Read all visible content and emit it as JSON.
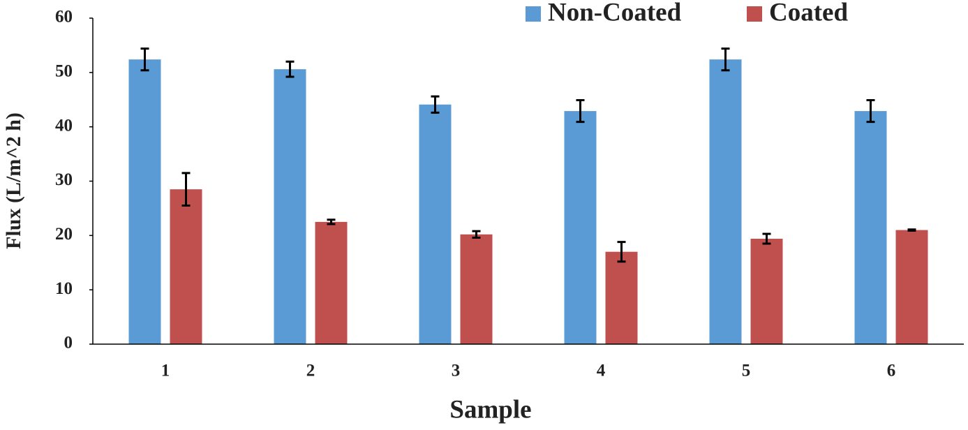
{
  "chart_data": {
    "type": "bar",
    "x_label": "Sample",
    "y_label": "Flux (L/m^2 h)",
    "categories": [
      "1",
      "2",
      "3",
      "4",
      "5",
      "6"
    ],
    "series": [
      {
        "name": "Non-Coated",
        "color": "#5b9bd5",
        "values": [
          52.4,
          50.6,
          44.1,
          42.9,
          52.4,
          42.9
        ],
        "errors": [
          2,
          1.4,
          1.5,
          2,
          2,
          2
        ]
      },
      {
        "name": "Coated",
        "color": "#c0504d",
        "values": [
          28.5,
          22.5,
          20.2,
          17.0,
          19.4,
          21.0
        ],
        "errors": [
          3,
          0.4,
          0.6,
          1.8,
          0.9,
          0.1
        ]
      }
    ],
    "ylim": [
      0,
      60
    ],
    "yticks": [
      0,
      10,
      20,
      30,
      40,
      50,
      60
    ],
    "grid": false,
    "legend": "top"
  }
}
